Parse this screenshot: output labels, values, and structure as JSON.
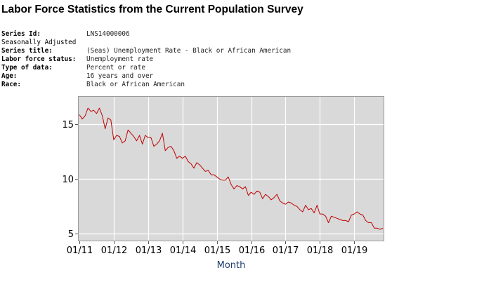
{
  "page": {
    "title": "Labor Force Statistics from the Current Population Survey"
  },
  "series_meta": [
    {
      "label": "Series Id:",
      "value": "LNS14000006"
    },
    {
      "label": "Seasonally Adjusted",
      "value": ""
    },
    {
      "label": "Series title:",
      "value": "(Seas) Unemployment Rate - Black or African American"
    },
    {
      "label": "Labor force status:",
      "value": "Unemployment rate"
    },
    {
      "label": "Type of data:",
      "value": "Percent or rate"
    },
    {
      "label": "Age:",
      "value": "16 years and over"
    },
    {
      "label": "Race:",
      "value": "Black or African American"
    }
  ],
  "colors": {
    "plot_background": "#d9d9d9",
    "gridline": "#ffffff",
    "series_line": "#c00000",
    "axis_title": "#1f3c6b"
  },
  "chart_data": {
    "type": "line",
    "xlabel": "Month",
    "ylabel": "",
    "x_tick_labels": [
      "01/11",
      "01/12",
      "01/13",
      "01/14",
      "01/15",
      "01/16",
      "01/17",
      "01/18",
      "01/19"
    ],
    "y_ticks": [
      5,
      10,
      15
    ],
    "ylim": [
      4.3,
      17.6
    ],
    "x_start": "2011-01",
    "x_end": "2019-11",
    "grid": true,
    "legend": "none",
    "series": [
      {
        "values": [
          15.9,
          15.5,
          15.8,
          16.5,
          16.2,
          16.3,
          16.0,
          16.5,
          15.8,
          14.6,
          15.6,
          15.4,
          13.6,
          14.0,
          13.9,
          13.3,
          13.5,
          14.5,
          14.2,
          13.9,
          13.5,
          14.0,
          13.2,
          14.0,
          13.8,
          13.8,
          13.0,
          13.2,
          13.5,
          14.2,
          12.6,
          12.9,
          13.0,
          12.6,
          11.9,
          12.1,
          11.9,
          12.1,
          11.6,
          11.4,
          11.0,
          11.5,
          11.3,
          11.0,
          10.7,
          10.8,
          10.4,
          10.4,
          10.2,
          10.0,
          9.9,
          9.9,
          10.2,
          9.5,
          9.1,
          9.4,
          9.3,
          9.1,
          9.3,
          8.5,
          8.8,
          8.6,
          8.9,
          8.8,
          8.2,
          8.6,
          8.4,
          8.1,
          8.3,
          8.6,
          8.0,
          7.8,
          7.7,
          7.9,
          7.8,
          7.6,
          7.5,
          7.2,
          7.0,
          7.6,
          7.2,
          7.3,
          6.9,
          7.6,
          6.8,
          6.8,
          6.6,
          6.0,
          6.6,
          6.5,
          6.4,
          6.3,
          6.2,
          6.2,
          6.1,
          6.7,
          6.8,
          7.0,
          6.8,
          6.7,
          6.2,
          6.0,
          6.0,
          5.5,
          5.5,
          5.4,
          5.5
        ]
      }
    ]
  }
}
